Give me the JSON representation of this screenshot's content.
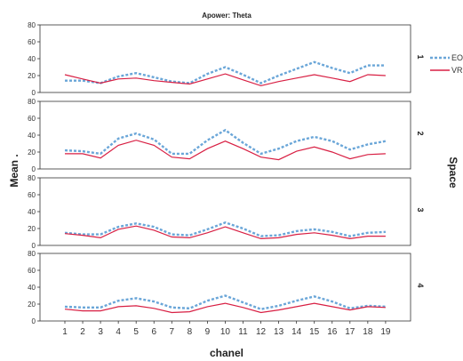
{
  "chart_data": {
    "type": "line",
    "title": "Apower: Theta",
    "xlabel": "chanel",
    "ylabel": "Mean .",
    "facet_label": "Space",
    "x": [
      "1",
      "2",
      "3",
      "4",
      "5",
      "6",
      "7",
      "8",
      "9",
      "10",
      "11",
      "12",
      "13",
      "14",
      "15",
      "16",
      "17",
      "18",
      "19"
    ],
    "ylim": [
      0,
      80
    ],
    "yticks": [
      "0",
      "20",
      "40",
      "60",
      "80"
    ],
    "grid": false,
    "legend_position": "right",
    "colors": {
      "EO": "#6aa6d8",
      "VR": "#d81f43"
    },
    "panels": [
      {
        "label": "1",
        "series": [
          {
            "name": "EO",
            "values": [
              14,
              14,
              11,
              19,
              23,
              18,
              13,
              11,
              22,
              30,
              21,
              11,
              20,
              28,
              36,
              29,
              23,
              32,
              32
            ]
          },
          {
            "name": "VR",
            "values": [
              21,
              16,
              11,
              16,
              17,
              14,
              12,
              10,
              16,
              22,
              15,
              8,
              13,
              17,
              21,
              17,
              13,
              21,
              20
            ]
          }
        ]
      },
      {
        "label": "2",
        "series": [
          {
            "name": "EO",
            "values": [
              22,
              21,
              18,
              36,
              42,
              35,
              18,
              18,
              34,
              46,
              31,
              18,
              24,
              33,
              38,
              33,
              23,
              29,
              33
            ]
          },
          {
            "name": "VR",
            "values": [
              18,
              18,
              13,
              28,
              34,
              28,
              14,
              12,
              24,
              33,
              24,
              14,
              11,
              21,
              26,
              20,
              12,
              17,
              18
            ]
          }
        ]
      },
      {
        "label": "3",
        "series": [
          {
            "name": "EO",
            "values": [
              15,
              13,
              13,
              22,
              26,
              22,
              13,
              12,
              19,
              27,
              20,
              11,
              12,
              17,
              19,
              16,
              11,
              15,
              16
            ]
          },
          {
            "name": "VR",
            "values": [
              14,
              12,
              9,
              19,
              23,
              18,
              10,
              9,
              15,
              22,
              15,
              8,
              9,
              13,
              15,
              12,
              8,
              11,
              11
            ]
          }
        ]
      },
      {
        "label": "4",
        "series": [
          {
            "name": "EO",
            "values": [
              17,
              16,
              16,
              24,
              27,
              23,
              16,
              15,
              24,
              30,
              22,
              14,
              18,
              24,
              29,
              23,
              15,
              18,
              17
            ]
          },
          {
            "name": "VR",
            "values": [
              14,
              12,
              12,
              17,
              18,
              15,
              10,
              11,
              17,
              21,
              16,
              10,
              13,
              17,
              21,
              17,
              13,
              17,
              16
            ]
          }
        ]
      }
    ]
  }
}
